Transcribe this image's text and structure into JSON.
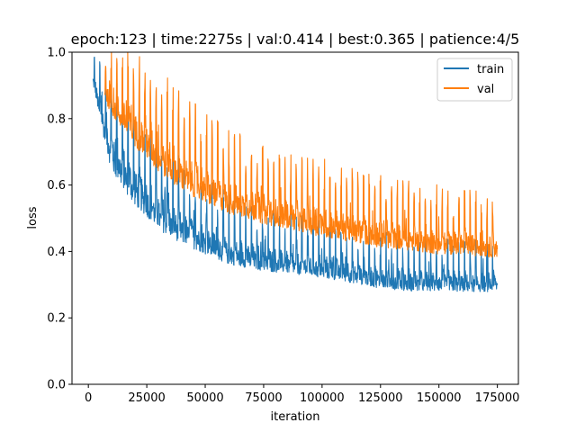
{
  "chart_data": {
    "type": "line",
    "title": "epoch:123 | time:2275s | val:0.414 | best:0.365 | patience:4/5",
    "xlabel": "iteration",
    "ylabel": "loss",
    "xlim": [
      -7000,
      184000
    ],
    "ylim": [
      0.0,
      1.0
    ],
    "xticks": [
      0,
      25000,
      50000,
      75000,
      100000,
      125000,
      150000,
      175000
    ],
    "xtick_labels": [
      "0",
      "25000",
      "50000",
      "75000",
      "100000",
      "125000",
      "150000",
      "175000"
    ],
    "yticks": [
      0.0,
      0.2,
      0.4,
      0.6,
      0.8,
      1.0
    ],
    "ytick_labels": [
      "0.0",
      "0.2",
      "0.4",
      "0.6",
      "0.8",
      "1.0"
    ],
    "grid": false,
    "legend": "top-right",
    "series": [
      {
        "name": "train",
        "color": "#1f77b4",
        "x": [
          2000,
          5000,
          10000,
          15000,
          20000,
          25000,
          30000,
          40000,
          50000,
          60000,
          75000,
          90000,
          100000,
          110000,
          125000,
          140000,
          150000,
          160000,
          175000
        ],
        "y_low": [
          0.9,
          0.78,
          0.62,
          0.57,
          0.52,
          0.49,
          0.45,
          0.41,
          0.38,
          0.35,
          0.33,
          0.32,
          0.31,
          0.3,
          0.28,
          0.27,
          0.27,
          0.27,
          0.27
        ],
        "y_high": [
          1.0,
          1.0,
          0.98,
          0.92,
          0.86,
          0.8,
          0.75,
          0.68,
          0.62,
          0.58,
          0.54,
          0.51,
          0.5,
          0.48,
          0.46,
          0.45,
          0.45,
          0.44,
          0.44
        ]
      },
      {
        "name": "val",
        "color": "#ff7f0e",
        "x": [
          7000,
          10000,
          15000,
          20000,
          25000,
          30000,
          40000,
          50000,
          60000,
          75000,
          90000,
          100000,
          110000,
          125000,
          140000,
          150000,
          160000,
          175000
        ],
        "y_low": [
          0.85,
          0.8,
          0.75,
          0.7,
          0.66,
          0.62,
          0.57,
          0.53,
          0.5,
          0.47,
          0.45,
          0.43,
          0.42,
          0.4,
          0.39,
          0.38,
          0.38,
          0.37
        ],
        "y_high": [
          1.0,
          1.0,
          1.0,
          1.0,
          1.0,
          0.95,
          0.88,
          0.82,
          0.77,
          0.72,
          0.69,
          0.68,
          0.66,
          0.63,
          0.61,
          0.6,
          0.59,
          0.58
        ]
      }
    ]
  }
}
